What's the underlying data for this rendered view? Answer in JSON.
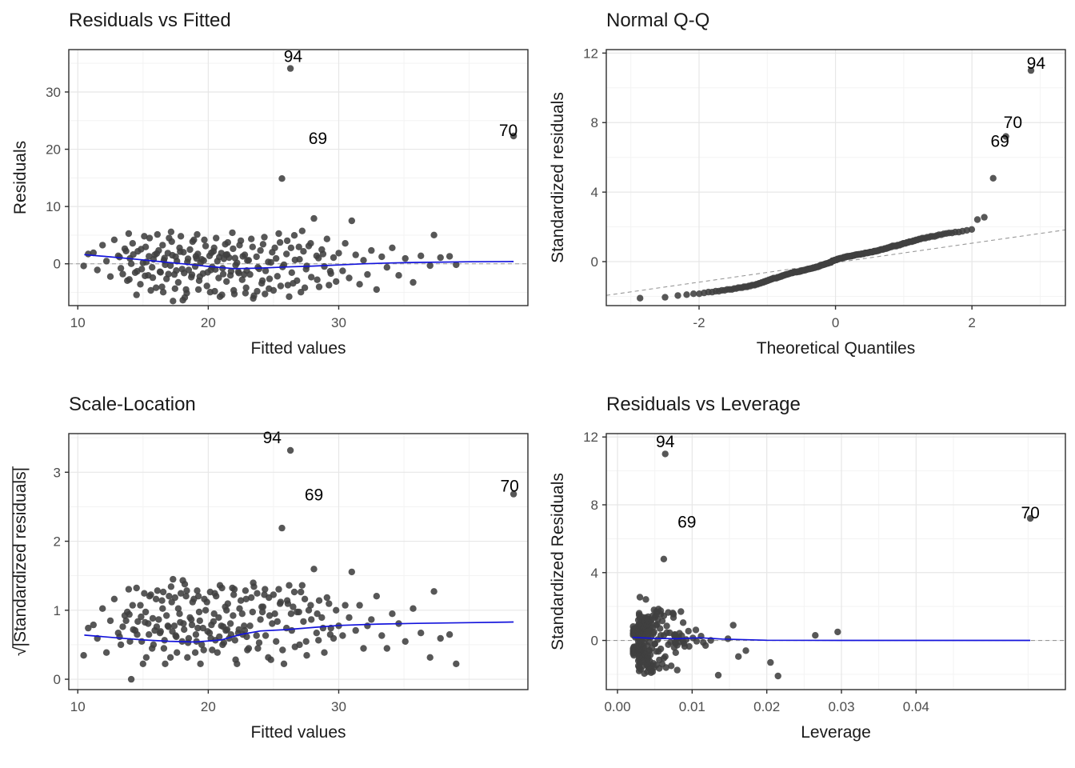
{
  "figure": {
    "background": "#FFFFFF"
  },
  "colors": {
    "point": "#404040",
    "smooth": "#1414DC",
    "dashed": "#999999",
    "grid_major": "#E7E7E7",
    "grid_minor": "#F3F3F3",
    "border": "#2E2E2E",
    "tick_label": "#4D4D4D",
    "text": "#1A1A1A"
  },
  "sigma": 3.1,
  "observations": [
    [
      10.45,
      -0.12,
      0.0115
    ],
    [
      10.8,
      0.55,
      0.0095
    ],
    [
      11.2,
      0.62,
      0.0105
    ],
    [
      11.5,
      -0.35,
      0.009
    ],
    [
      11.9,
      1.05,
      0.0088
    ],
    [
      12.2,
      0.15,
      0.0082
    ],
    [
      12.5,
      -0.72,
      0.0078
    ],
    [
      12.8,
      1.35,
      0.0075
    ],
    [
      13.1,
      0.45,
      0.007
    ],
    [
      13.3,
      -0.25,
      0.0068
    ],
    [
      13.6,
      0.85,
      0.0066
    ],
    [
      13.8,
      -0.95,
      0.0064
    ],
    [
      14.0,
      0.3,
      0.0062
    ],
    [
      14.2,
      1.15,
      0.006
    ],
    [
      14.4,
      -0.5,
      0.0058
    ],
    [
      14.6,
      0.7,
      0.0057
    ],
    [
      14.8,
      -1.15,
      0.0056
    ],
    [
      15.0,
      0.05,
      0.0054
    ],
    [
      15.2,
      0.95,
      0.0053
    ],
    [
      15.4,
      -0.65,
      0.0052
    ],
    [
      15.5,
      1.45,
      0.0051
    ],
    [
      15.7,
      -0.2,
      0.005
    ],
    [
      15.9,
      0.5,
      0.0049
    ],
    [
      16.0,
      -1.35,
      0.0048
    ],
    [
      16.2,
      0.75,
      0.0047
    ],
    [
      16.3,
      -0.45,
      0.0046
    ],
    [
      16.5,
      1.05,
      0.0045
    ],
    [
      16.6,
      0.2,
      0.0045
    ],
    [
      16.8,
      -0.85,
      0.0044
    ],
    [
      16.9,
      0.6,
      0.0043
    ],
    [
      17.1,
      -0.1,
      0.0043
    ],
    [
      17.2,
      1.25,
      0.0042
    ],
    [
      17.4,
      -0.6,
      0.0042
    ],
    [
      17.5,
      0.4,
      0.0041
    ],
    [
      17.7,
      -1.05,
      0.0041
    ],
    [
      17.8,
      0.9,
      0.004
    ],
    [
      18.0,
      -0.3,
      0.004
    ],
    [
      18.1,
      0.65,
      0.0039
    ],
    [
      18.3,
      -1.45,
      0.0039
    ],
    [
      18.4,
      0.1,
      0.0038
    ],
    [
      18.6,
      0.8,
      0.0038
    ],
    [
      18.7,
      -0.75,
      0.0037
    ],
    [
      18.9,
      1.35,
      0.0037
    ],
    [
      19.0,
      -0.15,
      0.0036
    ],
    [
      19.2,
      0.55,
      0.0036
    ],
    [
      19.3,
      -0.95,
      0.0036
    ],
    [
      19.5,
      0.25,
      0.0035
    ],
    [
      19.6,
      -0.55,
      0.0035
    ],
    [
      19.8,
      1.0,
      0.0035
    ],
    [
      19.9,
      -1.25,
      0.0034
    ],
    [
      20.1,
      0.45,
      0.0034
    ],
    [
      20.2,
      -0.35,
      0.0034
    ],
    [
      20.4,
      0.7,
      0.0033
    ],
    [
      20.5,
      -1.55,
      0.0033
    ],
    [
      20.7,
      0.15,
      0.0033
    ],
    [
      20.8,
      -0.8,
      0.0033
    ],
    [
      21.0,
      0.6,
      0.0032
    ],
    [
      21.1,
      -0.25,
      0.0032
    ],
    [
      21.3,
      1.1,
      0.0032
    ],
    [
      21.4,
      -1.0,
      0.0032
    ],
    [
      21.6,
      0.35,
      0.0031
    ],
    [
      21.7,
      -0.65,
      0.0031
    ],
    [
      21.9,
      0.85,
      0.0031
    ],
    [
      22.0,
      -1.7,
      0.0031
    ],
    [
      22.2,
      0.05,
      0.0031
    ],
    [
      22.3,
      -0.45,
      0.003
    ],
    [
      22.5,
      1.3,
      0.003
    ],
    [
      22.6,
      -0.9,
      0.003
    ],
    [
      22.8,
      0.5,
      0.003
    ],
    [
      22.9,
      -1.35,
      0.003
    ],
    [
      23.1,
      0.2,
      0.003
    ],
    [
      23.2,
      -0.6,
      0.003
    ],
    [
      23.4,
      0.95,
      0.0029
    ],
    [
      23.5,
      -1.8,
      0.0029
    ],
    [
      23.7,
      0.4,
      0.0029
    ],
    [
      23.8,
      -0.2,
      0.0029
    ],
    [
      24.0,
      0.75,
      0.0029
    ],
    [
      24.1,
      -1.1,
      0.0029
    ],
    [
      24.3,
      1.5,
      0.0029
    ],
    [
      24.4,
      -0.4,
      0.0028
    ],
    [
      24.6,
      0.1,
      0.0028
    ],
    [
      24.7,
      -0.85,
      0.0028
    ],
    [
      24.9,
      0.65,
      0.0028
    ],
    [
      25.0,
      -1.5,
      0.0028
    ],
    [
      25.2,
      0.3,
      0.0028
    ],
    [
      25.3,
      -0.7,
      0.0028
    ],
    [
      25.5,
      1.2,
      0.0028
    ],
    [
      25.8,
      -0.05,
      0.0028
    ],
    [
      26.0,
      0.55,
      0.0028
    ],
    [
      26.1,
      -1.2,
      0.0028
    ],
    [
      26.35,
      0.9,
      0.0028
    ],
    [
      26.4,
      -0.5,
      0.0028
    ],
    [
      26.6,
      1.6,
      0.0029
    ],
    [
      26.8,
      -0.95,
      0.0029
    ],
    [
      27.0,
      0.25,
      0.0029
    ],
    [
      27.1,
      -1.6,
      0.0029
    ],
    [
      27.3,
      0.7,
      0.0029
    ],
    [
      27.5,
      -0.3,
      0.003
    ],
    [
      27.7,
      1.0,
      0.003
    ],
    [
      27.9,
      -0.75,
      0.003
    ],
    [
      28.1,
      2.55,
      0.003
    ],
    [
      28.3,
      0.45,
      0.0031
    ],
    [
      28.5,
      -1.3,
      0.0031
    ],
    [
      28.7,
      0.8,
      0.0031
    ],
    [
      28.9,
      -0.15,
      0.0032
    ],
    [
      29.1,
      1.4,
      0.0032
    ],
    [
      29.4,
      -0.55,
      0.0033
    ],
    [
      29.6,
      0.35,
      0.0033
    ],
    [
      29.8,
      -1.0,
      0.0034
    ],
    [
      30.0,
      0.6,
      0.0034
    ],
    [
      30.3,
      -0.4,
      0.0035
    ],
    [
      30.5,
      1.15,
      0.0036
    ],
    [
      30.8,
      -0.8,
      0.0037
    ],
    [
      31.0,
      2.42,
      0.0038
    ],
    [
      31.3,
      0.5,
      0.0039
    ],
    [
      31.6,
      -1.15,
      0.004
    ],
    [
      31.9,
      0.2,
      0.0041
    ],
    [
      32.2,
      -0.6,
      0.0043
    ],
    [
      32.5,
      0.75,
      0.0044
    ],
    [
      32.9,
      -1.45,
      0.0046
    ],
    [
      33.3,
      0.4,
      0.0048
    ],
    [
      33.7,
      -0.2,
      0.005
    ],
    [
      34.1,
      0.9,
      0.0052
    ],
    [
      34.6,
      -0.65,
      0.0055
    ],
    [
      35.1,
      0.3,
      0.0058
    ],
    [
      35.7,
      -1.05,
      0.0062
    ],
    [
      36.3,
      0.45,
      0.0066
    ],
    [
      37.0,
      -0.1,
      0.0071
    ],
    [
      37.3,
      1.62,
      0.0074
    ],
    [
      37.8,
      0.35,
      0.0077
    ],
    [
      38.5,
      0.42,
      0.0083
    ],
    [
      39.0,
      -0.05,
      0.0088
    ],
    [
      13.9,
      1.7,
      0.0085
    ],
    [
      14.5,
      -1.75,
      0.008
    ],
    [
      15.1,
      1.55,
      0.0075
    ],
    [
      15.6,
      -1.5,
      0.0072
    ],
    [
      16.1,
      1.65,
      0.0068
    ],
    [
      16.55,
      -1.6,
      0.0065
    ],
    [
      17.0,
      1.45,
      0.0062
    ],
    [
      17.45,
      -1.4,
      0.006
    ],
    [
      17.9,
      1.55,
      0.0058
    ],
    [
      18.35,
      -1.65,
      0.0056
    ],
    [
      18.8,
      1.25,
      0.0054
    ],
    [
      19.25,
      -1.45,
      0.0052
    ],
    [
      19.7,
      1.35,
      0.005
    ],
    [
      20.15,
      -1.6,
      0.0049
    ],
    [
      20.6,
      1.45,
      0.0047
    ],
    [
      21.05,
      -1.75,
      0.0046
    ],
    [
      21.5,
      1.2,
      0.0045
    ],
    [
      21.95,
      -1.5,
      0.0044
    ],
    [
      22.4,
      1.05,
      0.0043
    ],
    [
      22.85,
      -1.65,
      0.0042
    ],
    [
      23.3,
      1.4,
      0.0041
    ],
    [
      23.75,
      -1.55,
      0.0041
    ],
    [
      24.2,
      1.1,
      0.004
    ],
    [
      24.65,
      -1.4,
      0.004
    ],
    [
      25.1,
      0.9,
      0.0039
    ],
    [
      25.55,
      -1.25,
      0.0039
    ],
    [
      26.05,
      1.3,
      0.0039
    ],
    [
      26.5,
      -1.1,
      0.0039
    ],
    [
      26.95,
      0.95,
      0.004
    ],
    [
      27.4,
      -1.35,
      0.004
    ],
    [
      27.85,
      1.15,
      0.0041
    ],
    [
      28.35,
      -0.9,
      0.0041
    ],
    [
      28.8,
      0.55,
      0.0042
    ],
    [
      29.25,
      -1.2,
      0.0043
    ],
    [
      14.1,
      0.0,
      0.0125
    ],
    [
      14.9,
      -0.3,
      0.0118
    ],
    [
      15.8,
      0.25,
      0.0112
    ],
    [
      16.7,
      -0.05,
      0.0106
    ],
    [
      17.6,
      0.15,
      0.0101
    ],
    [
      18.5,
      -0.35,
      0.0096
    ],
    [
      19.4,
      0.05,
      0.0092
    ],
    [
      20.3,
      -0.18,
      0.0089
    ],
    [
      21.2,
      0.28,
      0.0086
    ],
    [
      22.1,
      -0.08,
      0.0084
    ],
    [
      23.0,
      0.18,
      0.0082
    ],
    [
      23.9,
      -0.28,
      0.008
    ],
    [
      24.8,
      0.08,
      0.0079
    ],
    [
      25.7,
      -0.18,
      0.0078
    ],
    [
      26.65,
      0.22,
      0.0077
    ],
    [
      27.55,
      -0.12,
      0.0077
    ],
    [
      28.45,
      0.32,
      0.0076
    ],
    [
      29.35,
      -0.42,
      0.0076
    ],
    [
      13.2,
      0.38,
      0.0024
    ],
    [
      13.45,
      -0.58,
      0.0023
    ],
    [
      13.7,
      0.72,
      0.0023
    ],
    [
      13.95,
      -0.88,
      0.0022
    ],
    [
      14.25,
      0.52,
      0.0022
    ],
    [
      14.55,
      -0.42,
      0.0022
    ],
    [
      14.85,
      0.82,
      0.0021
    ],
    [
      15.15,
      -0.68,
      0.0021
    ],
    [
      15.45,
      0.42,
      0.0021
    ],
    [
      15.75,
      -0.78,
      0.0021
    ],
    [
      16.05,
      0.58,
      0.0021
    ],
    [
      16.35,
      -0.48,
      0.0021
    ],
    [
      16.65,
      0.32,
      0.0021
    ],
    [
      16.95,
      -0.58,
      0.0021
    ],
    [
      17.25,
      0.48,
      0.0022
    ],
    [
      17.55,
      -0.38,
      0.0022
    ],
    [
      17.85,
      0.68,
      0.0022
    ],
    [
      18.15,
      -0.52,
      0.0022
    ],
    [
      18.45,
      0.28,
      0.0023
    ],
    [
      18.75,
      -0.62,
      0.0023
    ],
    [
      19.05,
      0.42,
      0.0023
    ],
    [
      19.35,
      -0.72,
      0.0024
    ],
    [
      19.65,
      0.18,
      0.0024
    ],
    [
      19.95,
      -0.48,
      0.0025
    ],
    [
      20.25,
      0.62,
      0.0025
    ],
    [
      20.55,
      -0.32,
      0.0026
    ],
    [
      20.85,
      0.38,
      0.0026
    ],
    [
      21.15,
      -0.58,
      0.0027
    ],
    [
      21.45,
      0.52,
      0.0027
    ],
    [
      21.75,
      -0.42,
      0.0028
    ],
    [
      22.05,
      0.32,
      0.0028
    ],
    [
      22.35,
      -0.52,
      0.0029
    ],
    [
      22.65,
      0.42,
      0.0029
    ],
    [
      22.95,
      -0.38,
      0.0029
    ],
    [
      18.2,
      -1.9,
      0.0045
    ],
    [
      20.9,
      -1.85,
      0.004
    ],
    [
      23.45,
      -1.95,
      0.0036
    ],
    [
      26.2,
      -1.85,
      0.0047
    ],
    [
      21.85,
      1.75,
      0.0058
    ],
    [
      19.15,
      1.65,
      0.0053
    ],
    [
      24.35,
      -1.7,
      0.0044
    ],
    [
      17.15,
      1.8,
      0.0049
    ],
    [
      25.4,
      1.7,
      0.0052
    ],
    [
      27.2,
      1.85,
      0.0055
    ],
    [
      19.1,
      0.3,
      0.0265
    ],
    [
      21.35,
      0.5,
      0.0295
    ],
    [
      17.3,
      -2.1,
      0.0215
    ],
    [
      18.05,
      -2.05,
      0.0135
    ],
    [
      16.45,
      -1.3,
      0.0205
    ],
    [
      20.45,
      0.9,
      0.0155
    ],
    [
      22.75,
      -0.6,
      0.0172
    ],
    [
      15.25,
      0.1,
      0.0148
    ],
    [
      24.15,
      -0.95,
      0.0162
    ],
    [
      26.3,
      11.0,
      0.0064
    ],
    [
      43.4,
      7.2,
      0.0553
    ],
    [
      25.65,
      4.8,
      0.0062
    ]
  ],
  "chart_data": [
    {
      "type": "scatter",
      "title": "Residuals vs Fitted",
      "xlabel": "Fitted values",
      "ylabel": "Residuals",
      "x_field": "fitted",
      "y_field": "residual",
      "xlim": [
        9.31,
        44.5
      ],
      "ylim": [
        -7.3,
        37.4
      ],
      "x_ticks": [
        10,
        20,
        30
      ],
      "x_tick_labels": [
        "10",
        "20",
        "30"
      ],
      "x_minor": [
        15,
        25,
        35,
        40
      ],
      "y_ticks": [
        0,
        10,
        20,
        30
      ],
      "y_tick_labels": [
        "0",
        "10",
        "20",
        "30"
      ],
      "y_minor": [
        -5,
        5,
        15,
        25,
        35
      ],
      "zero_line": true,
      "smooth": [
        [
          10.5,
          1.6
        ],
        [
          12,
          1.3
        ],
        [
          14,
          0.9
        ],
        [
          16,
          0.45
        ],
        [
          18,
          0.0
        ],
        [
          20,
          -0.45
        ],
        [
          22,
          -0.85
        ],
        [
          24,
          -0.75
        ],
        [
          26,
          -0.55
        ],
        [
          28,
          -0.4
        ],
        [
          30,
          -0.2
        ],
        [
          32,
          0.0
        ],
        [
          34,
          0.15
        ],
        [
          36,
          0.25
        ],
        [
          38,
          0.3
        ],
        [
          40,
          0.35
        ],
        [
          43.4,
          0.4
        ]
      ],
      "point_labels": [
        {
          "text": "94",
          "x": 26.5,
          "y": 35.2
        },
        {
          "text": "69",
          "x": 28.4,
          "y": 20.9
        },
        {
          "text": "70",
          "x": 43.0,
          "y": 22.3
        }
      ]
    },
    {
      "type": "scatter",
      "title": "Normal Q-Q",
      "xlabel": "Theoretical Quantiles",
      "ylabel": "Standardized residuals",
      "x_field": "quantile",
      "y_field": "std",
      "xlim": [
        -3.36,
        3.37
      ],
      "ylim": [
        -2.53,
        12.2
      ],
      "x_ticks": [
        -2,
        0,
        2
      ],
      "x_tick_labels": [
        "-2",
        "0",
        "2"
      ],
      "x_minor": [
        -3,
        -1,
        1,
        3
      ],
      "y_ticks": [
        0,
        4,
        8,
        12
      ],
      "y_tick_labels": [
        "0",
        "4",
        "8",
        "12"
      ],
      "y_minor": [
        -2,
        2,
        6,
        10
      ],
      "zero_line": false,
      "ref_line": {
        "slope": 0.56,
        "intercept": -0.06
      },
      "point_labels": [
        {
          "text": "94",
          "x": 2.94,
          "y": 11.1
        },
        {
          "text": "70",
          "x": 2.6,
          "y": 7.7
        },
        {
          "text": "69",
          "x": 2.41,
          "y": 6.6
        }
      ]
    },
    {
      "type": "scatter",
      "title": "Scale-Location",
      "xlabel": "Fitted values",
      "ylabel": "√|Standardized residuals|",
      "x_field": "fitted",
      "y_field": "sqrt_abs_std",
      "xlim": [
        9.31,
        44.5
      ],
      "ylim": [
        -0.15,
        3.56
      ],
      "x_ticks": [
        10,
        20,
        30
      ],
      "x_tick_labels": [
        "10",
        "20",
        "30"
      ],
      "x_minor": [
        15,
        25,
        35,
        40
      ],
      "y_ticks": [
        0,
        1,
        2,
        3
      ],
      "y_tick_labels": [
        "0",
        "1",
        "2",
        "3"
      ],
      "y_minor": [
        0.5,
        1.5,
        2.5,
        3.5
      ],
      "zero_line": false,
      "smooth": [
        [
          10.5,
          0.64
        ],
        [
          13,
          0.6
        ],
        [
          15,
          0.57
        ],
        [
          17,
          0.55
        ],
        [
          19,
          0.54
        ],
        [
          21,
          0.57
        ],
        [
          22.5,
          0.65
        ],
        [
          24,
          0.7
        ],
        [
          26,
          0.72
        ],
        [
          28,
          0.75
        ],
        [
          30,
          0.78
        ],
        [
          33,
          0.8
        ],
        [
          36,
          0.81
        ],
        [
          40,
          0.82
        ],
        [
          43.4,
          0.83
        ]
      ],
      "point_labels": [
        {
          "text": "94",
          "x": 24.9,
          "y": 3.42
        },
        {
          "text": "69",
          "x": 28.1,
          "y": 2.59
        },
        {
          "text": "70",
          "x": 43.1,
          "y": 2.72
        }
      ]
    },
    {
      "type": "scatter",
      "title": "Residuals vs Leverage",
      "xlabel": "Leverage",
      "ylabel": "Standardized Residuals",
      "x_field": "leverage",
      "y_field": "std",
      "xlim": [
        -0.0015,
        0.06
      ],
      "ylim": [
        -2.9,
        12.2
      ],
      "x_ticks": [
        0,
        0.01,
        0.02,
        0.03,
        0.04
      ],
      "x_tick_labels": [
        "0.00",
        "0.01",
        "0.02",
        "0.03",
        "0.04"
      ],
      "x_minor": [
        0.005,
        0.015,
        0.025,
        0.035,
        0.045,
        0.055
      ],
      "y_ticks": [
        0,
        4,
        8,
        12
      ],
      "y_tick_labels": [
        "0",
        "4",
        "8",
        "12"
      ],
      "y_minor": [
        -2,
        2,
        6,
        10
      ],
      "zero_line": true,
      "smooth": [
        [
          0.002,
          0.18
        ],
        [
          0.005,
          0.12
        ],
        [
          0.008,
          0.1
        ],
        [
          0.011,
          0.16
        ],
        [
          0.014,
          0.08
        ],
        [
          0.02,
          0.01
        ],
        [
          0.03,
          0.0
        ],
        [
          0.0553,
          0.0
        ]
      ],
      "point_labels": [
        {
          "text": "94",
          "x": 0.0064,
          "y": 11.4
        },
        {
          "text": "69",
          "x": 0.0093,
          "y": 6.65
        },
        {
          "text": "70",
          "x": 0.0553,
          "y": 7.2
        }
      ]
    }
  ]
}
